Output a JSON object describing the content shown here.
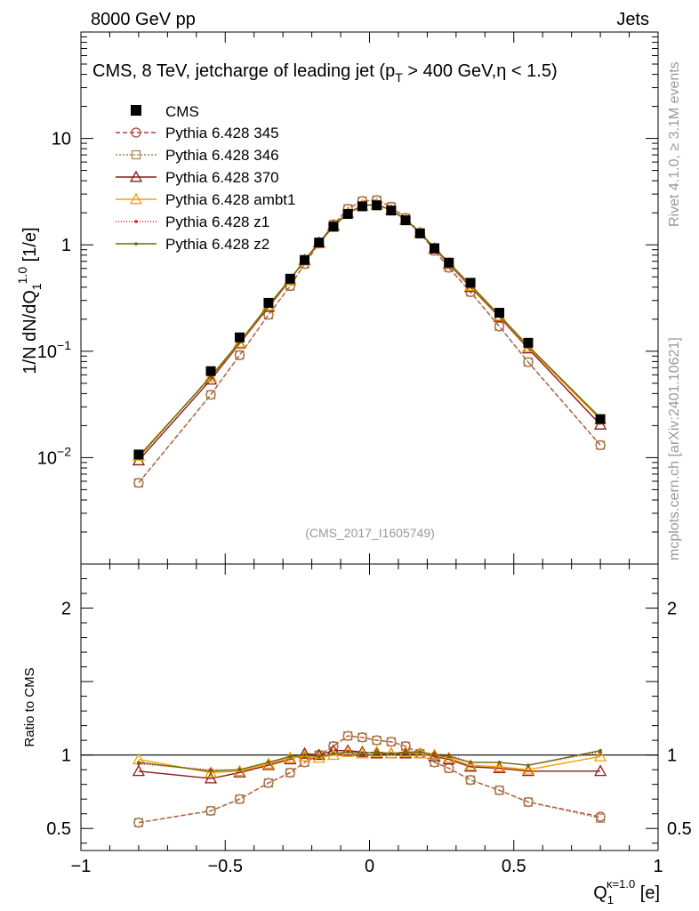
{
  "header": {
    "left": "8000 GeV pp",
    "right": "Jets"
  },
  "chart_data": {
    "type": "line",
    "title": "CMS, 8 TeV, jetcharge of leading jet (p",
    "title_sub": "T",
    "title_rest": " > 400 GeV,η < 1.5)",
    "ylabel": "1/N dN/dQ",
    "ylabel_sub": "1",
    "ylabel_sup": "1.0",
    "ylabel_unit": " [1/e]",
    "xlabel": "Q",
    "xlabel_sub": "1",
    "xlabel_sup": "κ=1.0",
    "xlabel_unit": " [e]",
    "ratio_ylabel": "Ratio to CMS",
    "xlim": [
      -1.0,
      1.0
    ],
    "ylim_log": [
      0.001,
      100
    ],
    "ratio_ylim": [
      0.35,
      2.3
    ],
    "x_ticks": [
      "−1",
      "−0.5",
      "0",
      "0.5",
      "1"
    ],
    "x_tick_values": [
      -1,
      -0.5,
      0,
      0.5,
      1
    ],
    "y_ticks": [
      {
        "value": 0.01,
        "base": "10",
        "exp": "−2"
      },
      {
        "value": 0.1,
        "base": "10",
        "exp": "−1"
      },
      {
        "value": 1,
        "base": "1",
        "exp": ""
      },
      {
        "value": 10,
        "base": "10",
        "exp": ""
      }
    ],
    "ratio_ticks": [
      {
        "value": 0.5,
        "label": "0.5"
      },
      {
        "value": 1,
        "label": "1"
      },
      {
        "value": 2,
        "label": "2"
      }
    ],
    "ratio_ticks_right": [
      "0.5",
      "1",
      "2"
    ],
    "analysis_tag": "(CMS_2017_I1605749)",
    "side_text_top": "Rivet 4.1.0, ≥ 3.1M events",
    "side_text_bottom": "mcplots.cern.ch [arXiv:2401.10621]",
    "x": [
      -0.8,
      -0.55,
      -0.45,
      -0.35,
      -0.275,
      -0.225,
      -0.175,
      -0.125,
      -0.075,
      -0.025,
      0.025,
      0.075,
      0.125,
      0.175,
      0.225,
      0.275,
      0.35,
      0.45,
      0.55,
      0.8
    ],
    "data": {
      "name": "CMS",
      "values": [
        0.0107,
        0.065,
        0.135,
        0.285,
        0.48,
        0.72,
        1.05,
        1.48,
        1.95,
        2.3,
        2.35,
        2.1,
        1.7,
        1.28,
        0.93,
        0.68,
        0.44,
        0.23,
        0.12,
        0.023
      ]
    },
    "series": [
      {
        "name": "Pythia 6.428 345",
        "color": "#b0413e",
        "dash": "5,3",
        "marker": "circle",
        "marker_size": 5,
        "values": [
          0.0058,
          0.039,
          0.092,
          0.22,
          0.41,
          0.66,
          1.03,
          1.55,
          2.18,
          2.58,
          2.63,
          2.28,
          1.79,
          1.3,
          0.88,
          0.61,
          0.36,
          0.171,
          0.079,
          0.0131
        ],
        "ratio": [
          0.54,
          0.62,
          0.7,
          0.81,
          0.88,
          0.95,
          1.0,
          1.06,
          1.13,
          1.12,
          1.1,
          1.09,
          1.06,
          1.01,
          0.95,
          0.91,
          0.83,
          0.76,
          0.68,
          0.58
        ]
      },
      {
        "name": "Pythia 6.428 346",
        "color": "#a6804a",
        "dash": "2,2",
        "marker": "square",
        "marker_size": 4.5,
        "values": [
          0.0058,
          0.039,
          0.092,
          0.22,
          0.41,
          0.66,
          1.03,
          1.55,
          2.18,
          2.58,
          2.63,
          2.28,
          1.79,
          1.3,
          0.88,
          0.61,
          0.36,
          0.171,
          0.079,
          0.0131
        ],
        "ratio": [
          0.54,
          0.62,
          0.7,
          0.81,
          0.88,
          0.95,
          1.0,
          1.06,
          1.13,
          1.12,
          1.1,
          1.09,
          1.06,
          1.01,
          0.95,
          0.91,
          0.83,
          0.76,
          0.68,
          0.57
        ]
      },
      {
        "name": "Pythia 6.428 370",
        "color": "#8b1a1a",
        "dash": "",
        "marker": "triangle",
        "marker_size": 6,
        "values": [
          0.0094,
          0.054,
          0.118,
          0.26,
          0.465,
          0.72,
          1.05,
          1.52,
          2.0,
          2.34,
          2.4,
          2.12,
          1.72,
          1.3,
          0.92,
          0.66,
          0.4,
          0.21,
          0.106,
          0.0204
        ],
        "ratio": [
          0.89,
          0.84,
          0.88,
          0.93,
          0.97,
          1.01,
          1.0,
          1.03,
          1.03,
          1.02,
          1.01,
          1.01,
          1.01,
          1.01,
          0.99,
          0.97,
          0.92,
          0.91,
          0.89,
          0.89
        ]
      },
      {
        "name": "Pythia 6.428 ambt1",
        "color": "#f5a000",
        "dash": "",
        "marker": "triangle",
        "marker_size": 6,
        "values": [
          0.0104,
          0.057,
          0.12,
          0.268,
          0.47,
          0.71,
          1.03,
          1.48,
          1.99,
          2.33,
          2.39,
          2.12,
          1.73,
          1.3,
          0.93,
          0.67,
          0.41,
          0.215,
          0.109,
          0.0228
        ],
        "ratio": [
          0.97,
          0.88,
          0.89,
          0.94,
          0.98,
          0.99,
          0.98,
          1.0,
          1.02,
          1.01,
          1.02,
          1.01,
          1.02,
          1.01,
          1.0,
          0.98,
          0.93,
          0.92,
          0.9,
          0.99
        ]
      },
      {
        "name": "Pythia 6.428 z1",
        "color": "#cc2222",
        "dash": "1,2",
        "marker": "dot",
        "marker_size": 1.8,
        "values": [
          0.01,
          0.058,
          0.122,
          0.272,
          0.475,
          0.72,
          1.04,
          1.5,
          1.98,
          2.33,
          2.39,
          2.12,
          1.73,
          1.3,
          0.94,
          0.68,
          0.42,
          0.218,
          0.112,
          0.0235
        ],
        "ratio": [
          0.94,
          0.9,
          0.9,
          0.95,
          0.99,
          1.0,
          0.99,
          1.01,
          1.02,
          1.01,
          1.02,
          1.01,
          1.02,
          1.02,
          1.01,
          1.0,
          0.95,
          0.95,
          0.93,
          1.02
        ]
      },
      {
        "name": "Pythia 6.428 z2",
        "color": "#6b6b10",
        "dash": "",
        "marker": "dot",
        "marker_size": 1.8,
        "values": [
          0.0101,
          0.058,
          0.122,
          0.272,
          0.475,
          0.72,
          1.04,
          1.5,
          1.98,
          2.33,
          2.39,
          2.12,
          1.73,
          1.3,
          0.94,
          0.68,
          0.42,
          0.218,
          0.112,
          0.0237
        ],
        "ratio": [
          0.95,
          0.89,
          0.9,
          0.95,
          0.99,
          1.0,
          0.99,
          1.01,
          1.02,
          1.01,
          1.02,
          1.01,
          1.02,
          1.02,
          1.0,
          0.99,
          0.95,
          0.95,
          0.93,
          1.03
        ]
      }
    ]
  }
}
